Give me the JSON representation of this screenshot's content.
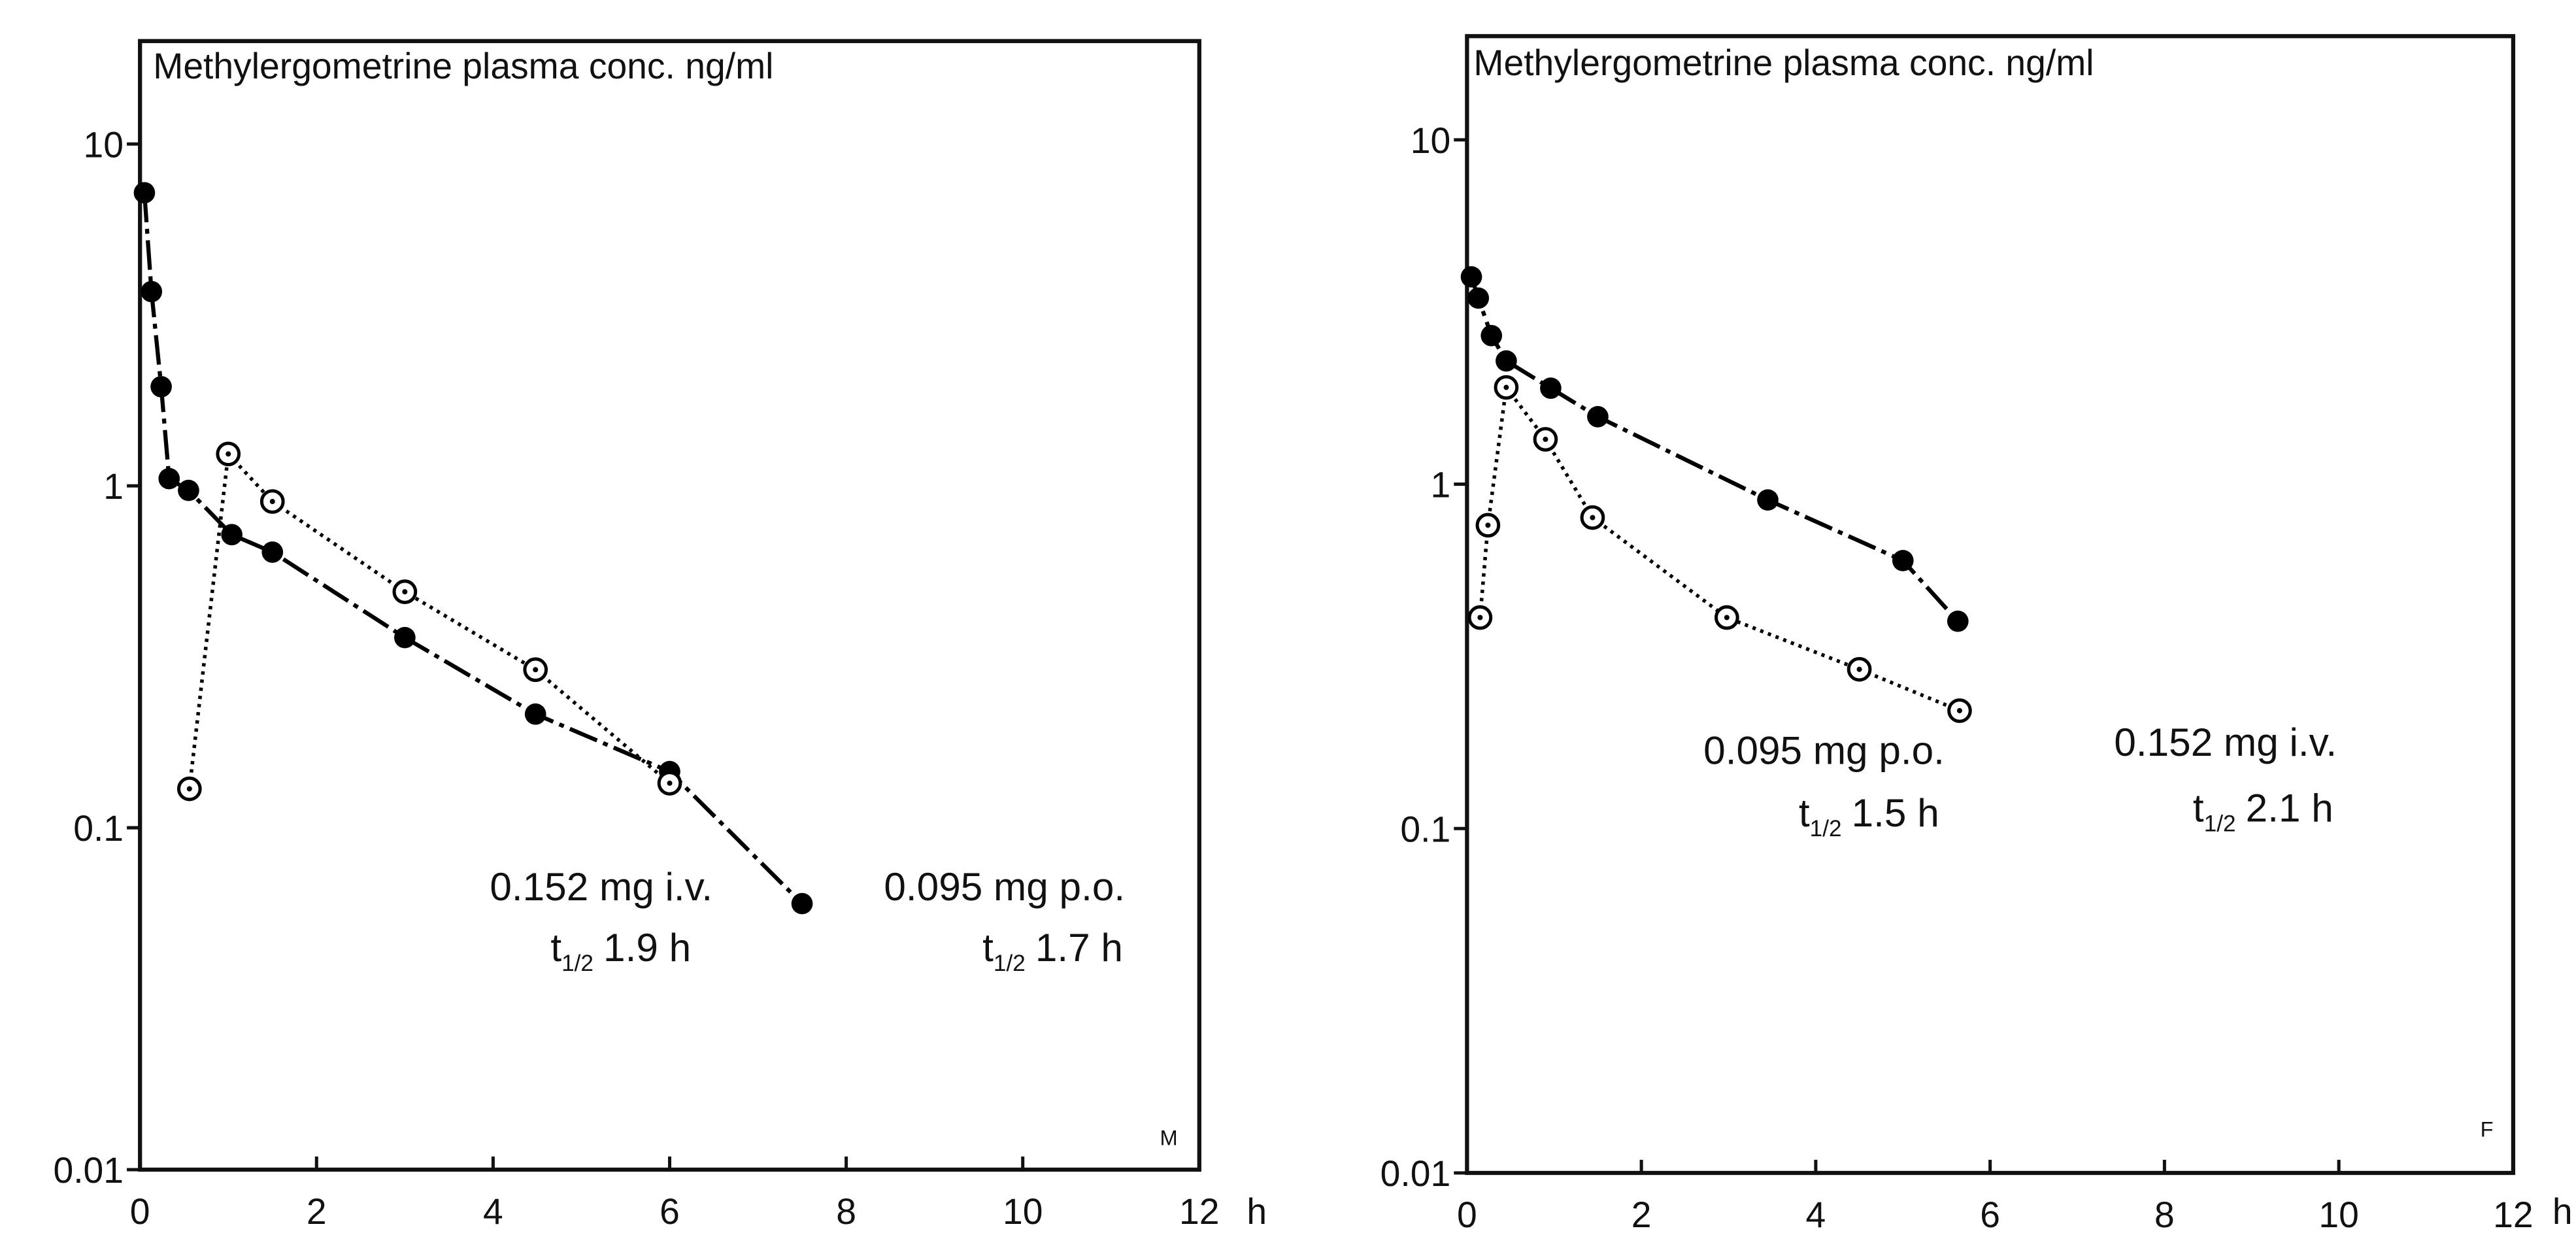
{
  "chart_data": [
    {
      "type": "line",
      "title": "Methylergometrine   plasma conc. ng/ml",
      "corner_label": "M",
      "xlabel": "h",
      "xlim": [
        0,
        12
      ],
      "xticks": [
        0,
        2,
        4,
        6,
        8,
        10,
        12
      ],
      "ylim": [
        0.01,
        20
      ],
      "yticks": [
        0.01,
        0.1,
        1,
        10
      ],
      "log_y": true,
      "half_life_symbol": "t",
      "half_life_subscript": "1/2",
      "series": [
        {
          "name": "0.152 mg i.v.",
          "half_life": "1.9 h",
          "color": "#000000",
          "line_style": "dashed",
          "marker": "filled",
          "x": [
            0.05,
            0.13,
            0.24,
            0.33,
            0.55,
            1.04,
            1.5,
            3.0,
            4.48,
            6.0,
            7.5
          ],
          "values": [
            7.2,
            3.7,
            1.95,
            1.05,
            0.97,
            0.72,
            0.64,
            0.36,
            0.215,
            0.146,
            0.06
          ]
        },
        {
          "name": "0.095 mg p.o.",
          "half_life": "1.7 h",
          "color": "#000000",
          "line_style": "dotted",
          "marker": "open",
          "x": [
            0.56,
            1.0,
            1.5,
            3.0,
            4.48,
            6.0
          ],
          "values": [
            0.13,
            1.24,
            0.9,
            0.49,
            0.29,
            0.135
          ]
        }
      ]
    },
    {
      "type": "line",
      "title": "Methylergometrine   plasma conc. ng/ml",
      "corner_label": "F",
      "xlabel": "h",
      "xlim": [
        0,
        12
      ],
      "xticks": [
        0,
        2,
        4,
        6,
        8,
        10,
        12
      ],
      "ylim": [
        0.01,
        20
      ],
      "yticks": [
        0.01,
        0.1,
        1,
        10
      ],
      "log_y": true,
      "half_life_symbol": "t",
      "half_life_subscript": "1/2",
      "series": [
        {
          "name": "0.152 mg i.v.",
          "half_life": "2.1 h",
          "color": "#000000",
          "line_style": "dashed",
          "marker": "filled",
          "x": [
            0.05,
            0.13,
            0.28,
            0.45,
            0.96,
            1.5,
            3.45,
            5.0,
            5.63
          ],
          "values": [
            4.0,
            3.47,
            2.7,
            2.28,
            1.9,
            1.57,
            0.9,
            0.6,
            0.4
          ]
        },
        {
          "name": "0.095 mg p.o.",
          "half_life": "1.5 h",
          "color": "#000000",
          "line_style": "dotted",
          "marker": "open",
          "x": [
            0.15,
            0.24,
            0.45,
            0.9,
            1.44,
            2.98,
            4.5,
            5.65
          ],
          "values": [
            0.41,
            0.76,
            1.91,
            1.35,
            0.8,
            0.41,
            0.29,
            0.22
          ]
        }
      ]
    }
  ]
}
